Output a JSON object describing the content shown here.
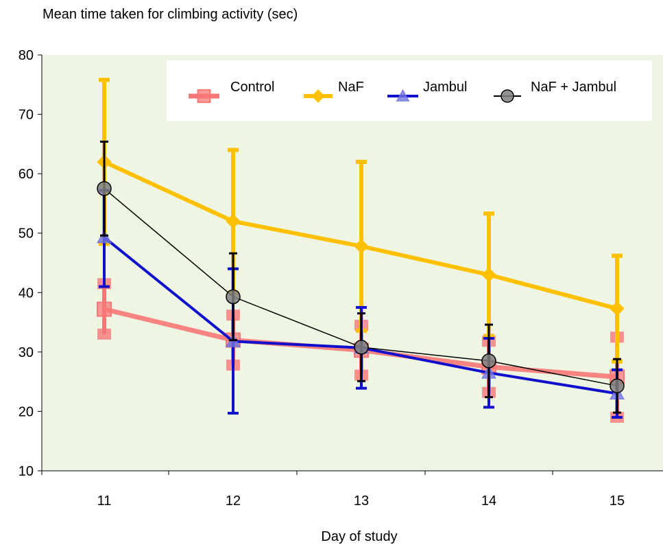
{
  "chart_data": {
    "type": "line",
    "title": "",
    "ylabel": "Mean time taken for climbing activity (sec)",
    "xlabel": "Day of study",
    "x": [
      11,
      12,
      13,
      14,
      15
    ],
    "x_tick_labels": [
      "11",
      "12",
      "13",
      "14",
      "15"
    ],
    "y_ticks": [
      10,
      20,
      30,
      40,
      50,
      60,
      70,
      80
    ],
    "y_tick_labels": [
      "10",
      "20",
      "30",
      "40",
      "50",
      "60",
      "70",
      "80"
    ],
    "ylim": [
      10,
      80
    ],
    "grid": false,
    "legend_position": "top-right",
    "plot_background": "#eef5e2",
    "series": [
      {
        "name": "Control",
        "color": "#f87878",
        "marker": "square",
        "values": [
          37.2,
          32.0,
          30.3,
          27.5,
          25.8
        ],
        "err_upper": [
          41.5,
          36.2,
          34.5,
          31.8,
          32.5
        ],
        "err_lower": [
          33.0,
          27.8,
          26.1,
          23.2,
          19.0
        ]
      },
      {
        "name": "NaF",
        "color": "#ffc000",
        "marker": "diamond",
        "values": [
          62.0,
          52.0,
          47.8,
          43.0,
          37.3
        ],
        "err_upper": [
          75.8,
          64.0,
          62.0,
          53.3,
          46.2
        ],
        "err_lower": [
          48.2,
          40.0,
          33.6,
          32.7,
          28.4
        ]
      },
      {
        "name": "Jambul",
        "color": "#1010cc",
        "marker": "triangle",
        "values": [
          49.3,
          31.8,
          30.7,
          26.5,
          23.0
        ],
        "err_upper": [
          57.2,
          44.0,
          37.5,
          32.3,
          27.0
        ],
        "err_lower": [
          41.0,
          19.7,
          23.9,
          20.7,
          19.0
        ]
      },
      {
        "name": "NaF + Jambul",
        "color": "#000000",
        "marker": "circle",
        "values": [
          57.5,
          39.3,
          30.8,
          28.5,
          24.3
        ],
        "err_upper": [
          65.4,
          46.6,
          36.5,
          34.6,
          28.8
        ],
        "err_lower": [
          49.6,
          32.0,
          25.1,
          22.4,
          19.8
        ]
      }
    ]
  }
}
